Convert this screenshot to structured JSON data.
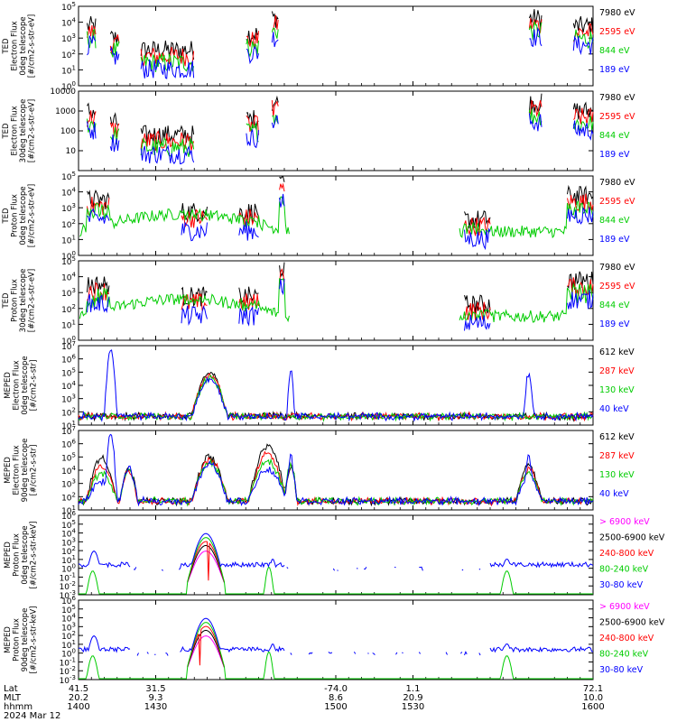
{
  "figure": {
    "date_label": "2024 Mar 12",
    "footer_row_labels": [
      "Lat",
      "MLT",
      "hhmm"
    ],
    "footer_ticks": [
      {
        "t": 1400,
        "lat": "41.5",
        "mlt": "20.2",
        "hhmm": "1400"
      },
      {
        "t": 1430,
        "lat": "31.5",
        "mlt": "9.3",
        "hhmm": "1430"
      },
      {
        "t": 1500,
        "lat": "-74.0",
        "mlt": "8.6",
        "hhmm": "1500"
      },
      {
        "t": 1530,
        "lat": "1.1",
        "mlt": "20.9",
        "hhmm": "1530"
      },
      {
        "t": 1600,
        "lat": "72.1",
        "mlt": "10.0",
        "hhmm": "1600"
      }
    ]
  },
  "chart_data": [
    {
      "type": "line",
      "ylabel": [
        "TED",
        "Electron Flux",
        "0deg telescope",
        "[#/cm2-s-str-eV]"
      ],
      "yscale": "log",
      "ylim_exp": [
        0,
        5
      ],
      "tick_style": "pow10",
      "series": [
        {
          "name": "7980 eV",
          "color": "#000000"
        },
        {
          "name": "2595 eV",
          "color": "#ff0000"
        },
        {
          "name": "844 eV",
          "color": "#00cc00"
        },
        {
          "name": "189 eV",
          "color": "#0000ff"
        }
      ]
    },
    {
      "type": "line",
      "ylabel": [
        "TED",
        "Electron Flux",
        "30deg telescope",
        "[#/cm2-s-str-eV]"
      ],
      "yscale": "log",
      "ylim_exp": [
        0,
        4
      ],
      "tick_style": "plain",
      "tick_labels": [
        "10",
        "100",
        "1000",
        "10000"
      ],
      "series": [
        {
          "name": "7980 eV",
          "color": "#000000"
        },
        {
          "name": "2595 eV",
          "color": "#ff0000"
        },
        {
          "name": "844 eV",
          "color": "#00cc00"
        },
        {
          "name": "189 eV",
          "color": "#0000ff"
        }
      ]
    },
    {
      "type": "line",
      "ylabel": [
        "TED",
        "Proton Flux",
        "0deg telescope",
        "[#/cm2-s-str-eV]"
      ],
      "yscale": "log",
      "ylim_exp": [
        0,
        5
      ],
      "tick_style": "pow10",
      "series": [
        {
          "name": "7980 eV",
          "color": "#000000"
        },
        {
          "name": "2595 eV",
          "color": "#ff0000"
        },
        {
          "name": "844 eV",
          "color": "#00cc00"
        },
        {
          "name": "189 eV",
          "color": "#0000ff"
        }
      ]
    },
    {
      "type": "line",
      "ylabel": [
        "TED",
        "Proton Flux",
        "30deg telescope",
        "[#/cm2-s-str-eV]"
      ],
      "yscale": "log",
      "ylim_exp": [
        0,
        5
      ],
      "tick_style": "pow10",
      "series": [
        {
          "name": "7980 eV",
          "color": "#000000"
        },
        {
          "name": "2595 eV",
          "color": "#ff0000"
        },
        {
          "name": "844 eV",
          "color": "#00cc00"
        },
        {
          "name": "189 eV",
          "color": "#0000ff"
        }
      ]
    },
    {
      "type": "line",
      "ylabel": [
        "MEPED",
        "Electron Flux",
        "0deg telescope",
        "[#/cm2-s-str]"
      ],
      "yscale": "log",
      "ylim_exp": [
        1,
        7
      ],
      "tick_style": "pow10",
      "series": [
        {
          "name": "612 keV",
          "color": "#000000"
        },
        {
          "name": "287 keV",
          "color": "#ff0000"
        },
        {
          "name": "130 keV",
          "color": "#00cc00"
        },
        {
          "name": "40 keV",
          "color": "#0000ff"
        }
      ]
    },
    {
      "type": "line",
      "ylabel": [
        "MEPED",
        "Electron Flux",
        "90deg telescope",
        "[#/cm2-s-str]"
      ],
      "yscale": "log",
      "ylim_exp": [
        1,
        7
      ],
      "tick_style": "pow10",
      "series": [
        {
          "name": "612 keV",
          "color": "#000000"
        },
        {
          "name": "287 keV",
          "color": "#ff0000"
        },
        {
          "name": "130 keV",
          "color": "#00cc00"
        },
        {
          "name": "40 keV",
          "color": "#0000ff"
        }
      ]
    },
    {
      "type": "line",
      "ylabel": [
        "MEPED",
        "Proton Flux",
        "0deg telescope",
        "[#/cm2-s-str-keV]"
      ],
      "yscale": "log",
      "ylim_exp": [
        -3,
        6
      ],
      "tick_style": "pow10",
      "series": [
        {
          "name": "> 6900 keV",
          "color": "#ff00ff"
        },
        {
          "name": "2500-6900 keV",
          "color": "#000000"
        },
        {
          "name": "240-800 keV",
          "color": "#ff0000"
        },
        {
          "name": "80-240 keV",
          "color": "#00cc00"
        },
        {
          "name": "30-80 keV",
          "color": "#0000ff"
        }
      ]
    },
    {
      "type": "line",
      "ylabel": [
        "MEPED",
        "Proton Flux",
        "90deg telescope",
        "[#/cm2-s-str-keV]"
      ],
      "yscale": "log",
      "ylim_exp": [
        -3,
        6
      ],
      "tick_style": "pow10",
      "series": [
        {
          "name": "> 6900 keV",
          "color": "#ff00ff"
        },
        {
          "name": "2500-6900 keV",
          "color": "#000000"
        },
        {
          "name": "240-800 keV",
          "color": "#ff0000"
        },
        {
          "name": "80-240 keV",
          "color": "#00cc00"
        },
        {
          "name": "30-80 keV",
          "color": "#0000ff"
        }
      ]
    }
  ]
}
